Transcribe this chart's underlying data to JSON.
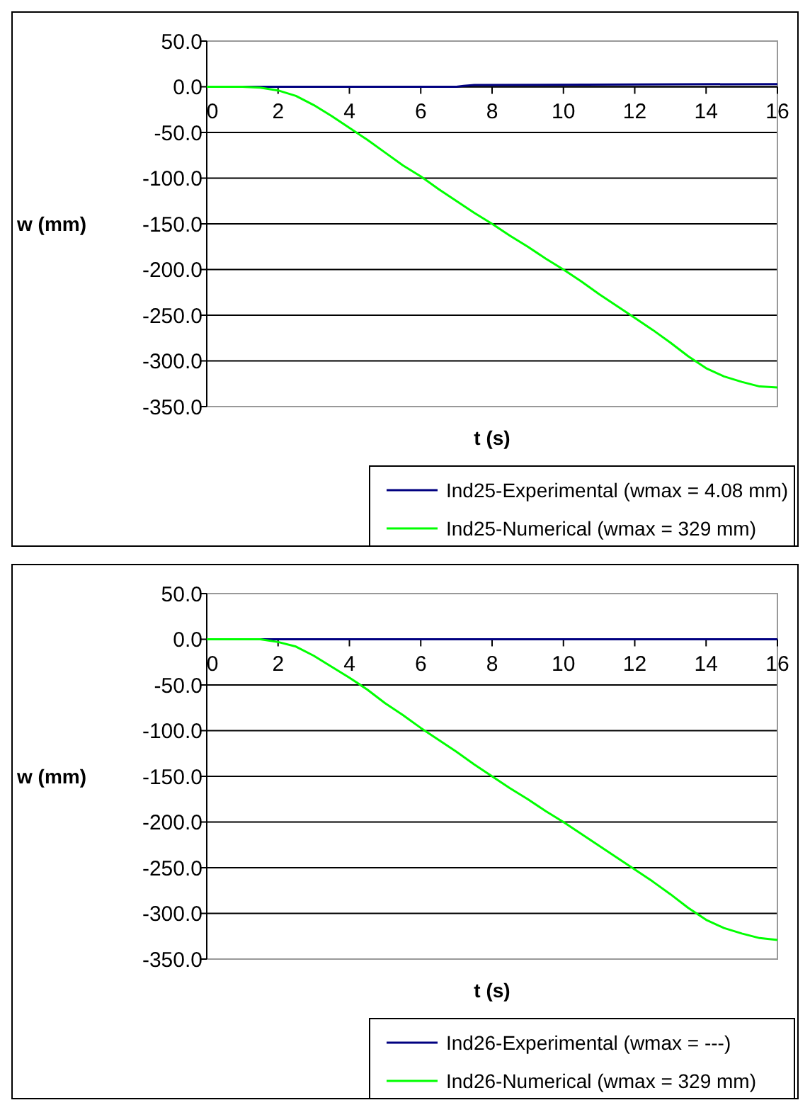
{
  "chart_data": [
    {
      "type": "line",
      "xlabel": "t (s)",
      "ylabel": "w (mm)",
      "xlim": [
        0,
        16
      ],
      "xticks": [
        0,
        2,
        4,
        6,
        8,
        10,
        12,
        14,
        16
      ],
      "ylim": [
        -350,
        50
      ],
      "yticks": [
        {
          "value": 50,
          "label": "50.0"
        },
        {
          "value": 0,
          "label": "0.0"
        },
        {
          "value": -50,
          "label": "-50.0"
        },
        {
          "value": -100,
          "label": "-100.0"
        },
        {
          "value": -150,
          "label": "-150.0"
        },
        {
          "value": -200,
          "label": "-200.0"
        },
        {
          "value": -250,
          "label": "-250.0"
        },
        {
          "value": -300,
          "label": "-300.0"
        },
        {
          "value": -350,
          "label": "-350.0"
        }
      ],
      "grid": "y",
      "legend": "bottom",
      "series": [
        {
          "name": "Ind25-Experimental (wmax = 4.08 mm)",
          "color": "#000080",
          "x": [
            0,
            7,
            7.2,
            7.5,
            16
          ],
          "values": [
            0,
            0,
            1,
            2,
            3
          ]
        },
        {
          "name": "Ind25-Numerical (wmax = 329 mm)",
          "color": "#00ff00",
          "x": [
            0,
            1,
            1.5,
            2,
            2.5,
            3,
            3.5,
            4,
            4.5,
            5,
            5.5,
            6,
            6.5,
            7,
            7.5,
            8,
            8.5,
            9,
            9.5,
            10,
            10.5,
            11,
            11.5,
            12,
            12.5,
            13,
            13.5,
            14,
            14.5,
            15,
            15.5,
            16
          ],
          "values": [
            0,
            0,
            -1,
            -4,
            -10,
            -20,
            -32,
            -45,
            -58,
            -72,
            -86,
            -98,
            -112,
            -125,
            -138,
            -150,
            -163,
            -175,
            -188,
            -200,
            -213,
            -227,
            -240,
            -253,
            -266,
            -280,
            -295,
            -308,
            -317,
            -323,
            -328,
            -329
          ]
        }
      ]
    },
    {
      "type": "line",
      "xlabel": "t (s)",
      "ylabel": "w (mm)",
      "xlim": [
        0,
        16
      ],
      "xticks": [
        0,
        2,
        4,
        6,
        8,
        10,
        12,
        14,
        16
      ],
      "ylim": [
        -350,
        50
      ],
      "yticks": [
        {
          "value": 50,
          "label": "50.0"
        },
        {
          "value": 0,
          "label": "0.0"
        },
        {
          "value": -50,
          "label": "-50.0"
        },
        {
          "value": -100,
          "label": "-100.0"
        },
        {
          "value": -150,
          "label": "-150.0"
        },
        {
          "value": -200,
          "label": "-200.0"
        },
        {
          "value": -250,
          "label": "-250.0"
        },
        {
          "value": -300,
          "label": "-300.0"
        },
        {
          "value": -350,
          "label": "-350.0"
        }
      ],
      "grid": "y",
      "legend": "bottom",
      "series": [
        {
          "name": "Ind26-Experimental (wmax = ---)",
          "color": "#000080",
          "x": [
            0,
            16
          ],
          "values": [
            0,
            0
          ]
        },
        {
          "name": "Ind26-Numerical (wmax = 329 mm)",
          "color": "#00ff00",
          "x": [
            0,
            1,
            1.5,
            2,
            2.5,
            3,
            3.5,
            4,
            4.5,
            5,
            5.5,
            6,
            6.5,
            7,
            7.5,
            8,
            8.5,
            9,
            9.5,
            10,
            10.5,
            11,
            11.5,
            12,
            12.5,
            13,
            13.5,
            14,
            14.5,
            15,
            15.5,
            16
          ],
          "values": [
            0,
            0,
            0,
            -3,
            -8,
            -18,
            -30,
            -42,
            -55,
            -70,
            -83,
            -97,
            -110,
            -123,
            -137,
            -150,
            -163,
            -175,
            -188,
            -200,
            -213,
            -226,
            -239,
            -252,
            -265,
            -279,
            -294,
            -307,
            -316,
            -322,
            -327,
            -329
          ]
        }
      ]
    }
  ]
}
